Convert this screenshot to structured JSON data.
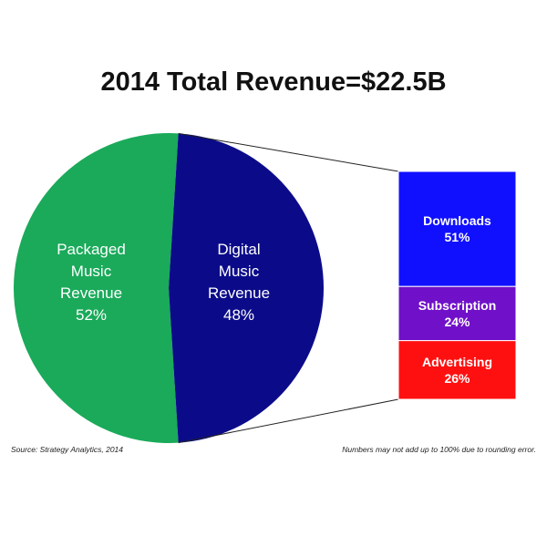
{
  "chart_data": [
    {
      "type": "pie",
      "title": "2014 Total Revenue=$22.5B",
      "slices": [
        {
          "name": "Packaged Music Revenue",
          "label_lines": [
            "Packaged",
            "Music",
            "Revenue",
            "52%"
          ],
          "value": 52,
          "color": "#1aaa5a"
        },
        {
          "name": "Digital Music Revenue",
          "label_lines": [
            "Digital",
            "Music",
            "Revenue",
            "48%"
          ],
          "value": 48,
          "color": "#0b0b8a"
        }
      ]
    },
    {
      "type": "bar",
      "stacked": true,
      "breakdown_of": "Digital Music Revenue",
      "segments": [
        {
          "name": "Downloads",
          "label_lines": [
            "Downloads",
            "51%"
          ],
          "value": 51,
          "color": "#1010ff"
        },
        {
          "name": "Subscription",
          "label_lines": [
            "Subscription",
            "24%"
          ],
          "value": 24,
          "color": "#7010c8"
        },
        {
          "name": "Advertising",
          "label_lines": [
            "Advertising",
            "26%"
          ],
          "value": 26,
          "color": "#ff1010"
        }
      ]
    }
  ],
  "notes": {
    "source": "Source: Strategy Analytics, 2014",
    "rounding": "Numbers may not add up to 100% due to rounding error."
  }
}
